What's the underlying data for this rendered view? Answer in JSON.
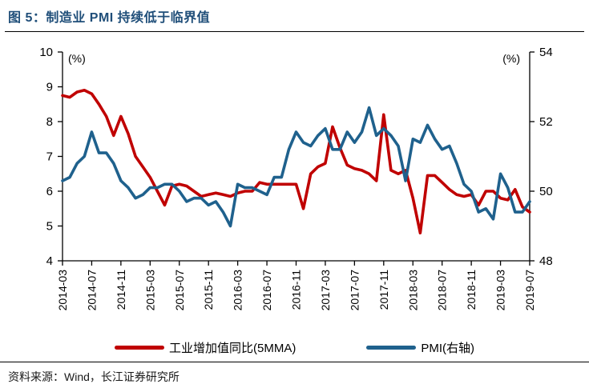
{
  "title": "图 5：制造业 PMI 持续低于临界值",
  "source": "资料来源：Wind，长江证券研究所",
  "colors": {
    "title": "#1F4E79",
    "industrial": "#C00000",
    "pmi": "#1F618D",
    "axis": "#000000"
  },
  "chart_data": {
    "type": "line",
    "x": [
      "2014-03",
      "2014-04",
      "2014-05",
      "2014-06",
      "2014-07",
      "2014-08",
      "2014-09",
      "2014-10",
      "2014-11",
      "2014-12",
      "2015-01",
      "2015-02",
      "2015-03",
      "2015-04",
      "2015-05",
      "2015-06",
      "2015-07",
      "2015-08",
      "2015-09",
      "2015-10",
      "2015-11",
      "2015-12",
      "2016-01",
      "2016-02",
      "2016-03",
      "2016-04",
      "2016-05",
      "2016-06",
      "2016-07",
      "2016-08",
      "2016-09",
      "2016-10",
      "2016-11",
      "2016-12",
      "2017-01",
      "2017-02",
      "2017-03",
      "2017-04",
      "2017-05",
      "2017-06",
      "2017-07",
      "2017-08",
      "2017-09",
      "2017-10",
      "2017-11",
      "2017-12",
      "2018-01",
      "2018-02",
      "2018-03",
      "2018-04",
      "2018-05",
      "2018-06",
      "2018-07",
      "2018-08",
      "2018-09",
      "2018-10",
      "2018-11",
      "2018-12",
      "2019-01",
      "2019-02",
      "2019-03",
      "2019-04",
      "2019-05",
      "2019-06",
      "2019-07"
    ],
    "x_tick_every": 4,
    "left_axis": {
      "label": "(%)",
      "range": [
        4,
        10
      ],
      "ticks": [
        4,
        5,
        6,
        7,
        8,
        9,
        10
      ]
    },
    "right_axis": {
      "label": "(%)",
      "range": [
        48,
        54
      ],
      "ticks": [
        48,
        50,
        52,
        54
      ]
    },
    "legend_position": "bottom",
    "grid": false,
    "series": [
      {
        "name": "工业增加值同比(5MMA)",
        "axis": "left",
        "color": "#C00000",
        "values": [
          8.75,
          8.7,
          8.85,
          8.9,
          8.8,
          8.5,
          8.15,
          7.6,
          8.15,
          7.65,
          7.0,
          6.7,
          6.4,
          6.0,
          5.6,
          6.15,
          6.2,
          6.15,
          6.0,
          5.85,
          5.9,
          5.95,
          5.9,
          5.85,
          5.95,
          6.0,
          6.0,
          6.25,
          6.2,
          6.2,
          6.2,
          6.2,
          6.2,
          5.5,
          6.5,
          6.7,
          6.8,
          7.85,
          7.25,
          6.75,
          6.65,
          6.6,
          6.5,
          6.3,
          8.2,
          6.6,
          6.5,
          6.6,
          5.8,
          4.8,
          6.45,
          6.45,
          6.25,
          6.05,
          5.9,
          5.85,
          5.9,
          5.6,
          6.0,
          6.0,
          5.8,
          5.75,
          6.05,
          5.55,
          5.4
        ]
      },
      {
        "name": "PMI(右轴)",
        "axis": "right",
        "color": "#1F618D",
        "values": [
          50.3,
          50.4,
          50.8,
          51.0,
          51.7,
          51.1,
          51.1,
          50.8,
          50.3,
          50.1,
          49.8,
          49.9,
          50.1,
          50.1,
          50.2,
          50.2,
          50.0,
          49.7,
          49.8,
          49.8,
          49.6,
          49.7,
          49.4,
          49.0,
          50.2,
          50.1,
          50.1,
          50.0,
          49.9,
          50.4,
          50.4,
          51.2,
          51.7,
          51.4,
          51.3,
          51.6,
          51.8,
          51.2,
          51.2,
          51.7,
          51.4,
          51.7,
          52.4,
          51.6,
          51.8,
          51.6,
          51.3,
          50.3,
          51.5,
          51.4,
          51.9,
          51.5,
          51.2,
          51.3,
          50.8,
          50.2,
          50.0,
          49.4,
          49.5,
          49.2,
          50.5,
          50.1,
          49.4,
          49.4,
          49.7
        ]
      }
    ]
  }
}
